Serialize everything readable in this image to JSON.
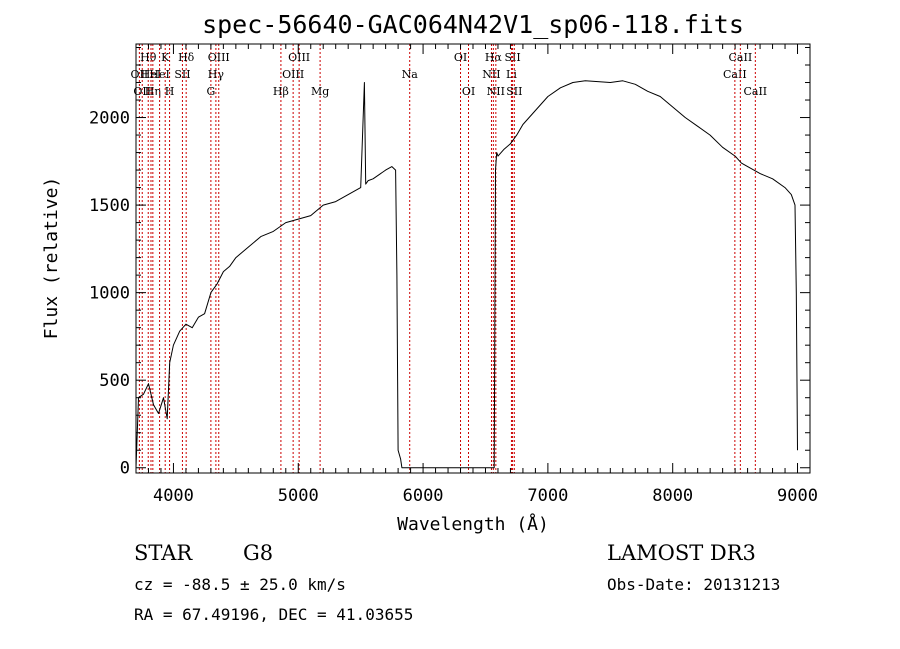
{
  "chart_data": {
    "type": "line",
    "title": "spec-56640-GAC064N42V1_sp06-118.fits",
    "xlabel": "Wavelength (Å)",
    "ylabel": "Flux (relative)",
    "xlim": [
      3700,
      9100
    ],
    "ylim": [
      -30,
      2420
    ],
    "xticks": [
      4000,
      5000,
      6000,
      7000,
      8000,
      9000
    ],
    "yticks": [
      0,
      500,
      1000,
      1500,
      2000
    ],
    "series": [
      {
        "name": "flux",
        "x": [
          3700,
          3720,
          3760,
          3800,
          3840,
          3880,
          3920,
          3950,
          3970,
          4000,
          4050,
          4100,
          4150,
          4200,
          4250,
          4300,
          4350,
          4400,
          4450,
          4500,
          4600,
          4700,
          4800,
          4900,
          5000,
          5100,
          5200,
          5300,
          5400,
          5500,
          5530,
          5540,
          5560,
          5600,
          5700,
          5750,
          5780,
          5790,
          5800,
          5820,
          5830,
          6570,
          6580,
          6590,
          6600,
          6650,
          6700,
          6750,
          6800,
          6900,
          7000,
          7100,
          7200,
          7300,
          7400,
          7500,
          7600,
          7700,
          7800,
          7900,
          8000,
          8100,
          8200,
          8300,
          8400,
          8500,
          8550,
          8600,
          8700,
          8800,
          8900,
          8950,
          8980,
          8990,
          9000
        ],
        "y": [
          0,
          400,
          420,
          480,
          360,
          310,
          400,
          280,
          600,
          700,
          780,
          820,
          800,
          860,
          880,
          1000,
          1050,
          1120,
          1150,
          1200,
          1260,
          1320,
          1350,
          1400,
          1420,
          1440,
          1500,
          1520,
          1560,
          1600,
          2200,
          1620,
          1640,
          1650,
          1700,
          1720,
          1700,
          1100,
          100,
          50,
          0,
          0,
          1700,
          1800,
          1780,
          1820,
          1850,
          1900,
          1960,
          2040,
          2120,
          2170,
          2200,
          2210,
          2205,
          2200,
          2210,
          2190,
          2150,
          2120,
          2060,
          2000,
          1950,
          1900,
          1830,
          1780,
          1740,
          1720,
          1680,
          1650,
          1600,
          1560,
          1500,
          1000,
          100
        ]
      }
    ],
    "line_markers": [
      {
        "wavelength": 3727,
        "label": "OII",
        "row": 2
      },
      {
        "wavelength": 3750,
        "label": "OII",
        "row": 3
      },
      {
        "wavelength": 3798,
        "label": "Hθ",
        "row": 1
      },
      {
        "wavelength": 3820,
        "label": "HeI",
        "row": 2
      },
      {
        "wavelength": 3835,
        "label": "Hη",
        "row": 3
      },
      {
        "wavelength": 3889,
        "label": "HeI",
        "row": 2
      },
      {
        "wavelength": 3934,
        "label": "K",
        "row": 1
      },
      {
        "wavelength": 3969,
        "label": "H",
        "row": 3
      },
      {
        "wavelength": 4072,
        "label": "SII",
        "row": 2
      },
      {
        "wavelength": 4102,
        "label": "Hδ",
        "row": 1
      },
      {
        "wavelength": 4300,
        "label": "G",
        "row": 3
      },
      {
        "wavelength": 4340,
        "label": "Hγ",
        "row": 2
      },
      {
        "wavelength": 4363,
        "label": "OIII",
        "row": 1
      },
      {
        "wavelength": 4861,
        "label": "Hβ",
        "row": 3
      },
      {
        "wavelength": 4959,
        "label": "OIII",
        "row": 2
      },
      {
        "wavelength": 5007,
        "label": "OIII",
        "row": 1
      },
      {
        "wavelength": 5175,
        "label": "Mg",
        "row": 3
      },
      {
        "wavelength": 5893,
        "label": "Na",
        "row": 2
      },
      {
        "wavelength": 6300,
        "label": "OI",
        "row": 1
      },
      {
        "wavelength": 6364,
        "label": "OI",
        "row": 3
      },
      {
        "wavelength": 6548,
        "label": "NII",
        "row": 2
      },
      {
        "wavelength": 6563,
        "label": "Hα",
        "row": 1
      },
      {
        "wavelength": 6583,
        "label": "NII",
        "row": 3
      },
      {
        "wavelength": 6708,
        "label": "Li",
        "row": 2
      },
      {
        "wavelength": 6717,
        "label": "SII",
        "row": 1
      },
      {
        "wavelength": 6731,
        "label": "SII",
        "row": 3
      },
      {
        "wavelength": 8498,
        "label": "CaII",
        "row": 2
      },
      {
        "wavelength": 8542,
        "label": "CaII",
        "row": 1
      },
      {
        "wavelength": 8662,
        "label": "CaII",
        "row": 3
      }
    ]
  },
  "info": {
    "object_class": "STAR",
    "subclass": "G8",
    "survey": "LAMOST DR3",
    "cz": "cz = -88.5 ± 25.0 km/s",
    "obs_date": "Obs-Date: 20131213",
    "coords": "RA =  67.49196, DEC =  41.03655"
  },
  "colors": {
    "line_marker": "#cc0000",
    "spectrum": "#000000",
    "axis": "#000000"
  }
}
